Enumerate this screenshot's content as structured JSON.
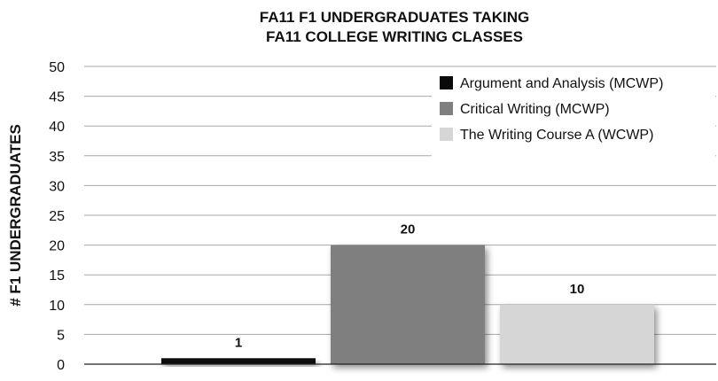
{
  "chart_data": {
    "type": "bar",
    "title": [
      "FA11 F1 UNDERGRADUATES TAKING",
      "FA11 COLLEGE WRITING CLASSES"
    ],
    "xlabel": "",
    "ylabel": "# F1 UNDERGRADUATES",
    "ylim": [
      0,
      50
    ],
    "yticks": [
      0,
      5,
      10,
      15,
      20,
      25,
      30,
      35,
      40,
      45,
      50
    ],
    "grid": true,
    "legend_position": "top-right",
    "series": [
      {
        "name": "Argument and Analysis (MCWP)",
        "values": [
          1
        ],
        "color": "#0a0a0a"
      },
      {
        "name": "Critical Writing (MCWP)",
        "values": [
          20
        ],
        "color": "#7f7f7f"
      },
      {
        "name": "The Writing Course A (WCWP)",
        "values": [
          10
        ],
        "color": "#d6d6d6"
      }
    ],
    "data_labels": [
      "1",
      "20",
      "10"
    ]
  }
}
